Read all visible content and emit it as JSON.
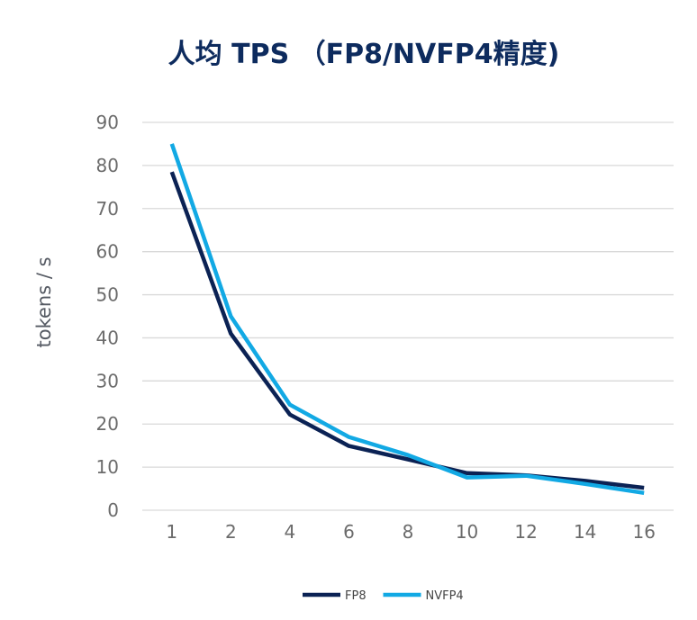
{
  "chart_data": {
    "type": "line",
    "title": "人均 TPS （FP8/NVFP4精度)",
    "xlabel": "",
    "ylabel": "tokens / s",
    "categories": [
      "1",
      "2",
      "4",
      "6",
      "8",
      "10",
      "12",
      "14",
      "16"
    ],
    "ylim": [
      0,
      90
    ],
    "yticks": [
      0,
      10,
      20,
      30,
      40,
      50,
      60,
      70,
      80,
      90
    ],
    "grid": true,
    "legend_position": "bottom",
    "series": [
      {
        "name": "FP8",
        "color": "#0b2254",
        "values": [
          78.5,
          41,
          22.2,
          14.9,
          11.8,
          8.6,
          8.1,
          6.8,
          5.2
        ]
      },
      {
        "name": "NVFP4",
        "color": "#12a9e4",
        "values": [
          85,
          45,
          24.5,
          17,
          12.8,
          7.6,
          8.0,
          6.1,
          4.0
        ]
      }
    ]
  }
}
